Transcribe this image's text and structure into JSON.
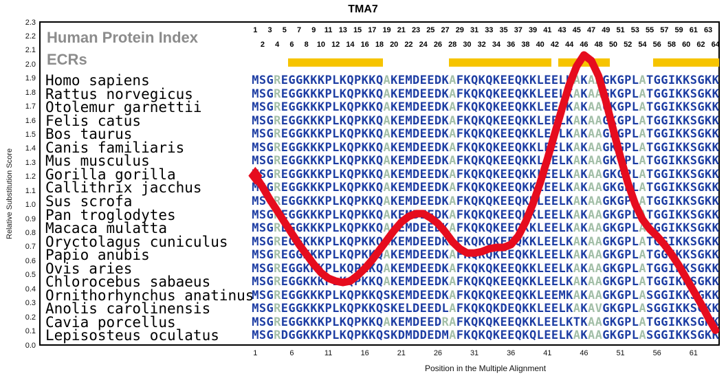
{
  "title": "TMA7",
  "overlay_labels": {
    "index_label": "Human Protein Index",
    "ecr_label": "ECRs"
  },
  "axes": {
    "y_label": "Relative Substitution Score",
    "x_label": "Position in the Multiple Alignment"
  },
  "alignment": {
    "positions": 64,
    "colors": {
      "default": "#1d3da3",
      "light": "#a3bfa8"
    },
    "light_letters": [
      "A",
      "R",
      "V"
    ],
    "species": [
      {
        "name": "Homo sapiens",
        "sequence": "MSGREGGKKKPLKQPKKQAKEMDEEDKAFKQKQKEEQKKLEELKAKAAGKGPLATGGIKKSGKK"
      },
      {
        "name": "Rattus norvegicus",
        "sequence": "MSGREGGKKKPLKQPKKQAKEMDEEDKAFKQKQKEEQKKLEELKAKAAGKGPLATGGIKKSGKK"
      },
      {
        "name": "Otolemur garnettii",
        "sequence": "MSGREGGKKKPLKQPKKQAKEMDEEDKAFKQKQKEEQKKLEELKAKAAGKGPLATGGIKKSGKK"
      },
      {
        "name": "Felis catus",
        "sequence": "MSGREGGKKKPLKQPKKQAKEMDEEDKAFKQKQKEEQKKLEELKAKAAGKGPLATGGIKKSGKK"
      },
      {
        "name": "Bos taurus",
        "sequence": "MSGREGGKKKPLKQPKKQAKEMDEEDKAFKQKQKEEQKKLEELKAKAAGKGPLATGGIKKSGKK"
      },
      {
        "name": "Canis familiaris",
        "sequence": "MSGREGGKKKPLKQPKKQAKEMDEEDKAFKQKQKEEQKKLEELKAKAAGKGPLATGGIKKSGKK"
      },
      {
        "name": "Mus musculus",
        "sequence": "MSGREGGKKKPLKQPKKQAKEMDEEDKAFKQKQKEEQKKLEELKAKAAGKGPLATGGIKKSGKK"
      },
      {
        "name": "Gorilla gorilla",
        "sequence": "MSGREGGKKKPLKQPKKQAKEMDEEDKAFKQKQKEEQKKLEELKAKAAGKGPLATGGIKKSGKK"
      },
      {
        "name": "Callithrix jacchus",
        "sequence": "MSGREGGKKKPLKQPKKQAKEMDEEDKAFKQKQKEEQKKLEELKAKAAGKGPLATGGIKKSGKK"
      },
      {
        "name": "Sus scrofa",
        "sequence": "MSGREGGKKKPLKQPKKQAKEMDEEDKAFKQKQKEEQKKLEELKAKAAGKGPLATGGIKKSGKK"
      },
      {
        "name": "Pan troglodytes",
        "sequence": "MSGREGGKKKPLKQPKKQAKEMDEEDKAFKQKQKEEQKKLEELKAKAAGKGPLATGGIKKSGKK"
      },
      {
        "name": "Macaca mulatta",
        "sequence": "MSGREGGKKKPLKQPKKQAKEMDEEDKAFKQKQKEEQKKLEELKAKAAGKGPLATGGIKKSGKK"
      },
      {
        "name": "Oryctolagus cuniculus",
        "sequence": "MSGREGGKKKPLKQPKKQAKEMDEEDKAFKQKQKEEQKKLEELKAKAAGKGPLATGGIKKSGKK"
      },
      {
        "name": "Papio anubis",
        "sequence": "MSGREGGKKKPLKQPKKQAKEMDEEDKAFKQKQKEEQKKLEELKAKAAGKGPLATGGIKKSGKK"
      },
      {
        "name": "Ovis aries",
        "sequence": "MSGREGGKKKPLKQPKKQAKEMDEEDKAFKQKQKEEQKKLEELKAKAAGKGPLATGGIKKSGKK"
      },
      {
        "name": "Chlorocebus sabaeus",
        "sequence": "MSGREGGKKKPLKQPKKQAKEMDEEDKAFKQKQKEEQKKLEELKAKAAGKGPLATGGIKKSGKK"
      },
      {
        "name": "Ornithorhynchus anatinus",
        "sequence": "MSGREGGKKKPLKQPKKQSKEMDEEDKAFKQKQKEEQKKLEEMKAKAAGKGPLASGGIKKSGKK"
      },
      {
        "name": "Anolis carolinensis",
        "sequence": "MSGREGGKKKPLKQPKKQSKELDEEDLAFKQKQKDEQKKLEELKAKAVGKGPLASGGIKKSGKK"
      },
      {
        "name": "Cavia porcellus",
        "sequence": "MSGREGGKKKPLKQPKKQAKEMDEEDRAFKQKQKEEQKKLEELKTKAAGKGPLATGGIKKSGKK"
      },
      {
        "name": "Lepisosteus oculatus",
        "sequence": "MSGRDGGKKKPLKQPKKQSKDMDDEDMAFKQKQKEEQKQLEELKAKAAGKGPLASGGIKKSGKK"
      }
    ]
  },
  "chart_data": {
    "type": "line",
    "title": "TMA7",
    "xlabel": "Position in the Multiple Alignment",
    "ylabel": "Relative Substitution Score",
    "xlim": [
      1,
      64
    ],
    "ylim": [
      0.0,
      2.3
    ],
    "grid": false,
    "legend": "none",
    "x_ticks": [
      1,
      6,
      11,
      16,
      21,
      26,
      31,
      36,
      41,
      46,
      51,
      56,
      61
    ],
    "y_ticks": [
      "0.0",
      "0.1",
      "0.2",
      "0.3",
      "0.4",
      "0.5",
      "0.6",
      "0.7",
      "0.8",
      "0.9",
      "1.0",
      "1.1",
      "1.2",
      "1.3",
      "1.4",
      "1.5",
      "1.6",
      "1.7",
      "1.8",
      "1.9",
      "2.0",
      "2.1",
      "2.2",
      "2.3"
    ],
    "line_color": "#e60c1e",
    "ecr_color": "#f6c400",
    "ecr_regions": [
      [
        6,
        18
      ],
      [
        28,
        41
      ],
      [
        43,
        49
      ],
      [
        56,
        64
      ]
    ],
    "series": [
      {
        "name": "Relative Substitution Score",
        "x": [
          1,
          2,
          3,
          4,
          5,
          6,
          7,
          8,
          9,
          10,
          11,
          12,
          13,
          14,
          15,
          16,
          17,
          18,
          19,
          20,
          21,
          22,
          23,
          24,
          25,
          26,
          27,
          28,
          29,
          30,
          31,
          32,
          33,
          34,
          35,
          36,
          37,
          38,
          39,
          40,
          41,
          42,
          43,
          44,
          45,
          46,
          47,
          48,
          49,
          50,
          51,
          52,
          53,
          54,
          55,
          56,
          57,
          58,
          59,
          60,
          61,
          62,
          63,
          64
        ],
        "y": [
          1.21,
          1.13,
          1.04,
          0.96,
          0.88,
          0.8,
          0.72,
          0.65,
          0.58,
          0.52,
          0.48,
          0.46,
          0.45,
          0.46,
          0.5,
          0.55,
          0.61,
          0.68,
          0.75,
          0.82,
          0.88,
          0.92,
          0.94,
          0.94,
          0.91,
          0.87,
          0.81,
          0.74,
          0.69,
          0.66,
          0.66,
          0.67,
          0.69,
          0.7,
          0.7,
          0.72,
          0.78,
          0.88,
          1.01,
          1.16,
          1.33,
          1.51,
          1.69,
          1.86,
          1.99,
          2.07,
          2.03,
          1.92,
          1.74,
          1.54,
          1.34,
          1.16,
          1.01,
          0.9,
          0.83,
          0.78,
          0.72,
          0.65,
          0.57,
          0.48,
          0.39,
          0.3,
          0.2,
          0.11
        ]
      }
    ]
  }
}
